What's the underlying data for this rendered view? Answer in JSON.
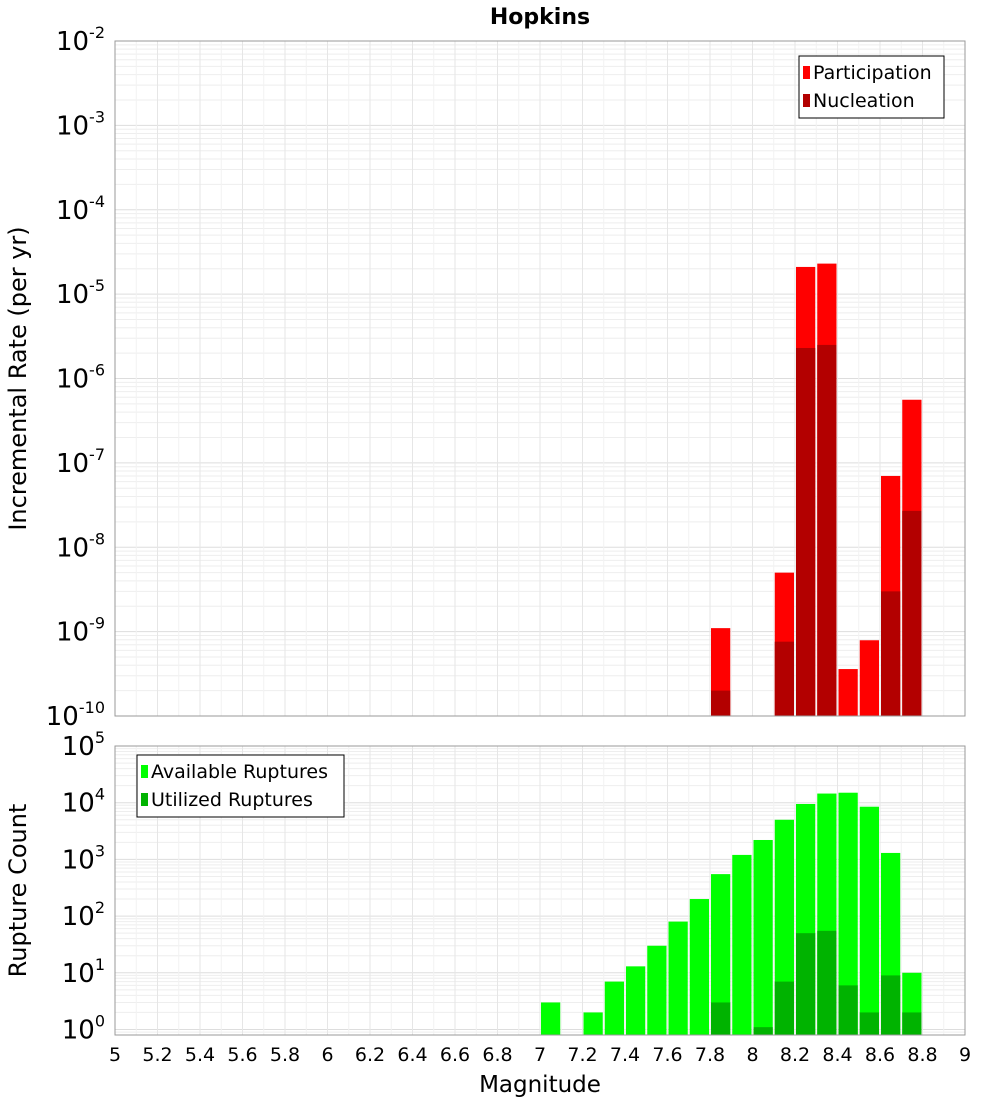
{
  "chart_data": [
    {
      "type": "bar",
      "title": "Hopkins",
      "ylabel": "Incremental Rate (per yr)",
      "xlabel": "",
      "xlim": [
        5,
        9
      ],
      "ylim": [
        1e-10,
        0.01
      ],
      "yscale": "log",
      "grid": true,
      "legend_position": "top-right",
      "bar_width": 0.1,
      "y_tick_exponents": [
        "-10",
        "-9",
        "-8",
        "-7",
        "-6",
        "-5",
        "-4",
        "-3",
        "-2"
      ],
      "series": [
        {
          "name": "Participation",
          "color": "#ff0000",
          "x": [
            7.85,
            8.15,
            8.25,
            8.35,
            8.45,
            8.55,
            8.65,
            8.75
          ],
          "values": [
            1.1e-09,
            5e-09,
            2.1e-05,
            2.3e-05,
            3.6e-10,
            7.9e-10,
            7e-08,
            5.6e-07
          ]
        },
        {
          "name": "Nucleation",
          "color": "#b30000",
          "x": [
            7.85,
            8.15,
            8.25,
            8.35,
            8.65,
            8.75
          ],
          "values": [
            2e-10,
            7.6e-10,
            2.3e-06,
            2.5e-06,
            3e-09,
            2.7e-08
          ]
        }
      ]
    },
    {
      "type": "bar",
      "title": "",
      "ylabel": "Rupture Count",
      "xlabel": "Magnitude",
      "xlim": [
        5,
        9
      ],
      "ylim": [
        0.8,
        100000
      ],
      "yscale": "log",
      "grid": true,
      "legend_position": "top-left",
      "bar_width": 0.1,
      "y_tick_exponents": [
        "0",
        "1",
        "2",
        "3",
        "4",
        "5"
      ],
      "x_ticks": [
        "5",
        "5.2",
        "5.4",
        "5.6",
        "5.8",
        "6",
        "6.2",
        "6.4",
        "6.6",
        "6.8",
        "7",
        "7.2",
        "7.4",
        "7.6",
        "7.8",
        "8",
        "8.2",
        "8.4",
        "8.6",
        "8.8",
        "9"
      ],
      "series": [
        {
          "name": "Available Ruptures",
          "color": "#00ff00",
          "x": [
            7.05,
            7.25,
            7.35,
            7.45,
            7.55,
            7.65,
            7.75,
            7.85,
            7.95,
            8.05,
            8.15,
            8.25,
            8.35,
            8.45,
            8.55,
            8.65,
            8.75
          ],
          "values": [
            3,
            2,
            7,
            13,
            30,
            80,
            200,
            550,
            1200,
            2200,
            5000,
            9500,
            14500,
            15000,
            8500,
            1300,
            10
          ]
        },
        {
          "name": "Utilized Ruptures",
          "color": "#00b300",
          "x": [
            7.85,
            8.05,
            8.15,
            8.25,
            8.35,
            8.45,
            8.55,
            8.65,
            8.75
          ],
          "values": [
            3,
            1.1,
            7,
            50,
            55,
            6,
            2,
            9,
            2
          ]
        }
      ]
    }
  ]
}
